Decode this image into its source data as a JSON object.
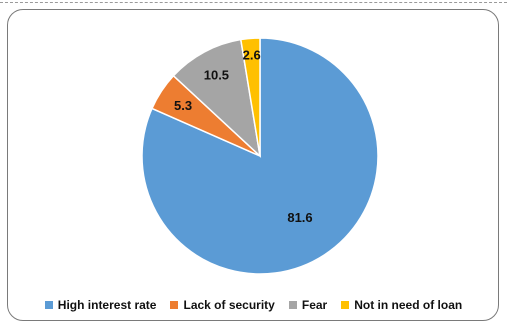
{
  "chart_data": {
    "type": "pie",
    "categories": [
      "High interest rate",
      "Lack of security",
      "Fear",
      "Not in need of loan"
    ],
    "values": [
      81.6,
      5.3,
      10.5,
      2.6
    ],
    "data_labels": [
      "81.6",
      "5.3",
      "10.5",
      "2.6"
    ],
    "colors": [
      "#5b9bd5",
      "#ed7d31",
      "#a5a5a5",
      "#ffc000"
    ],
    "title": "",
    "start_angle": "12 o'clock",
    "direction": "clockwise",
    "legend_position": "bottom"
  }
}
